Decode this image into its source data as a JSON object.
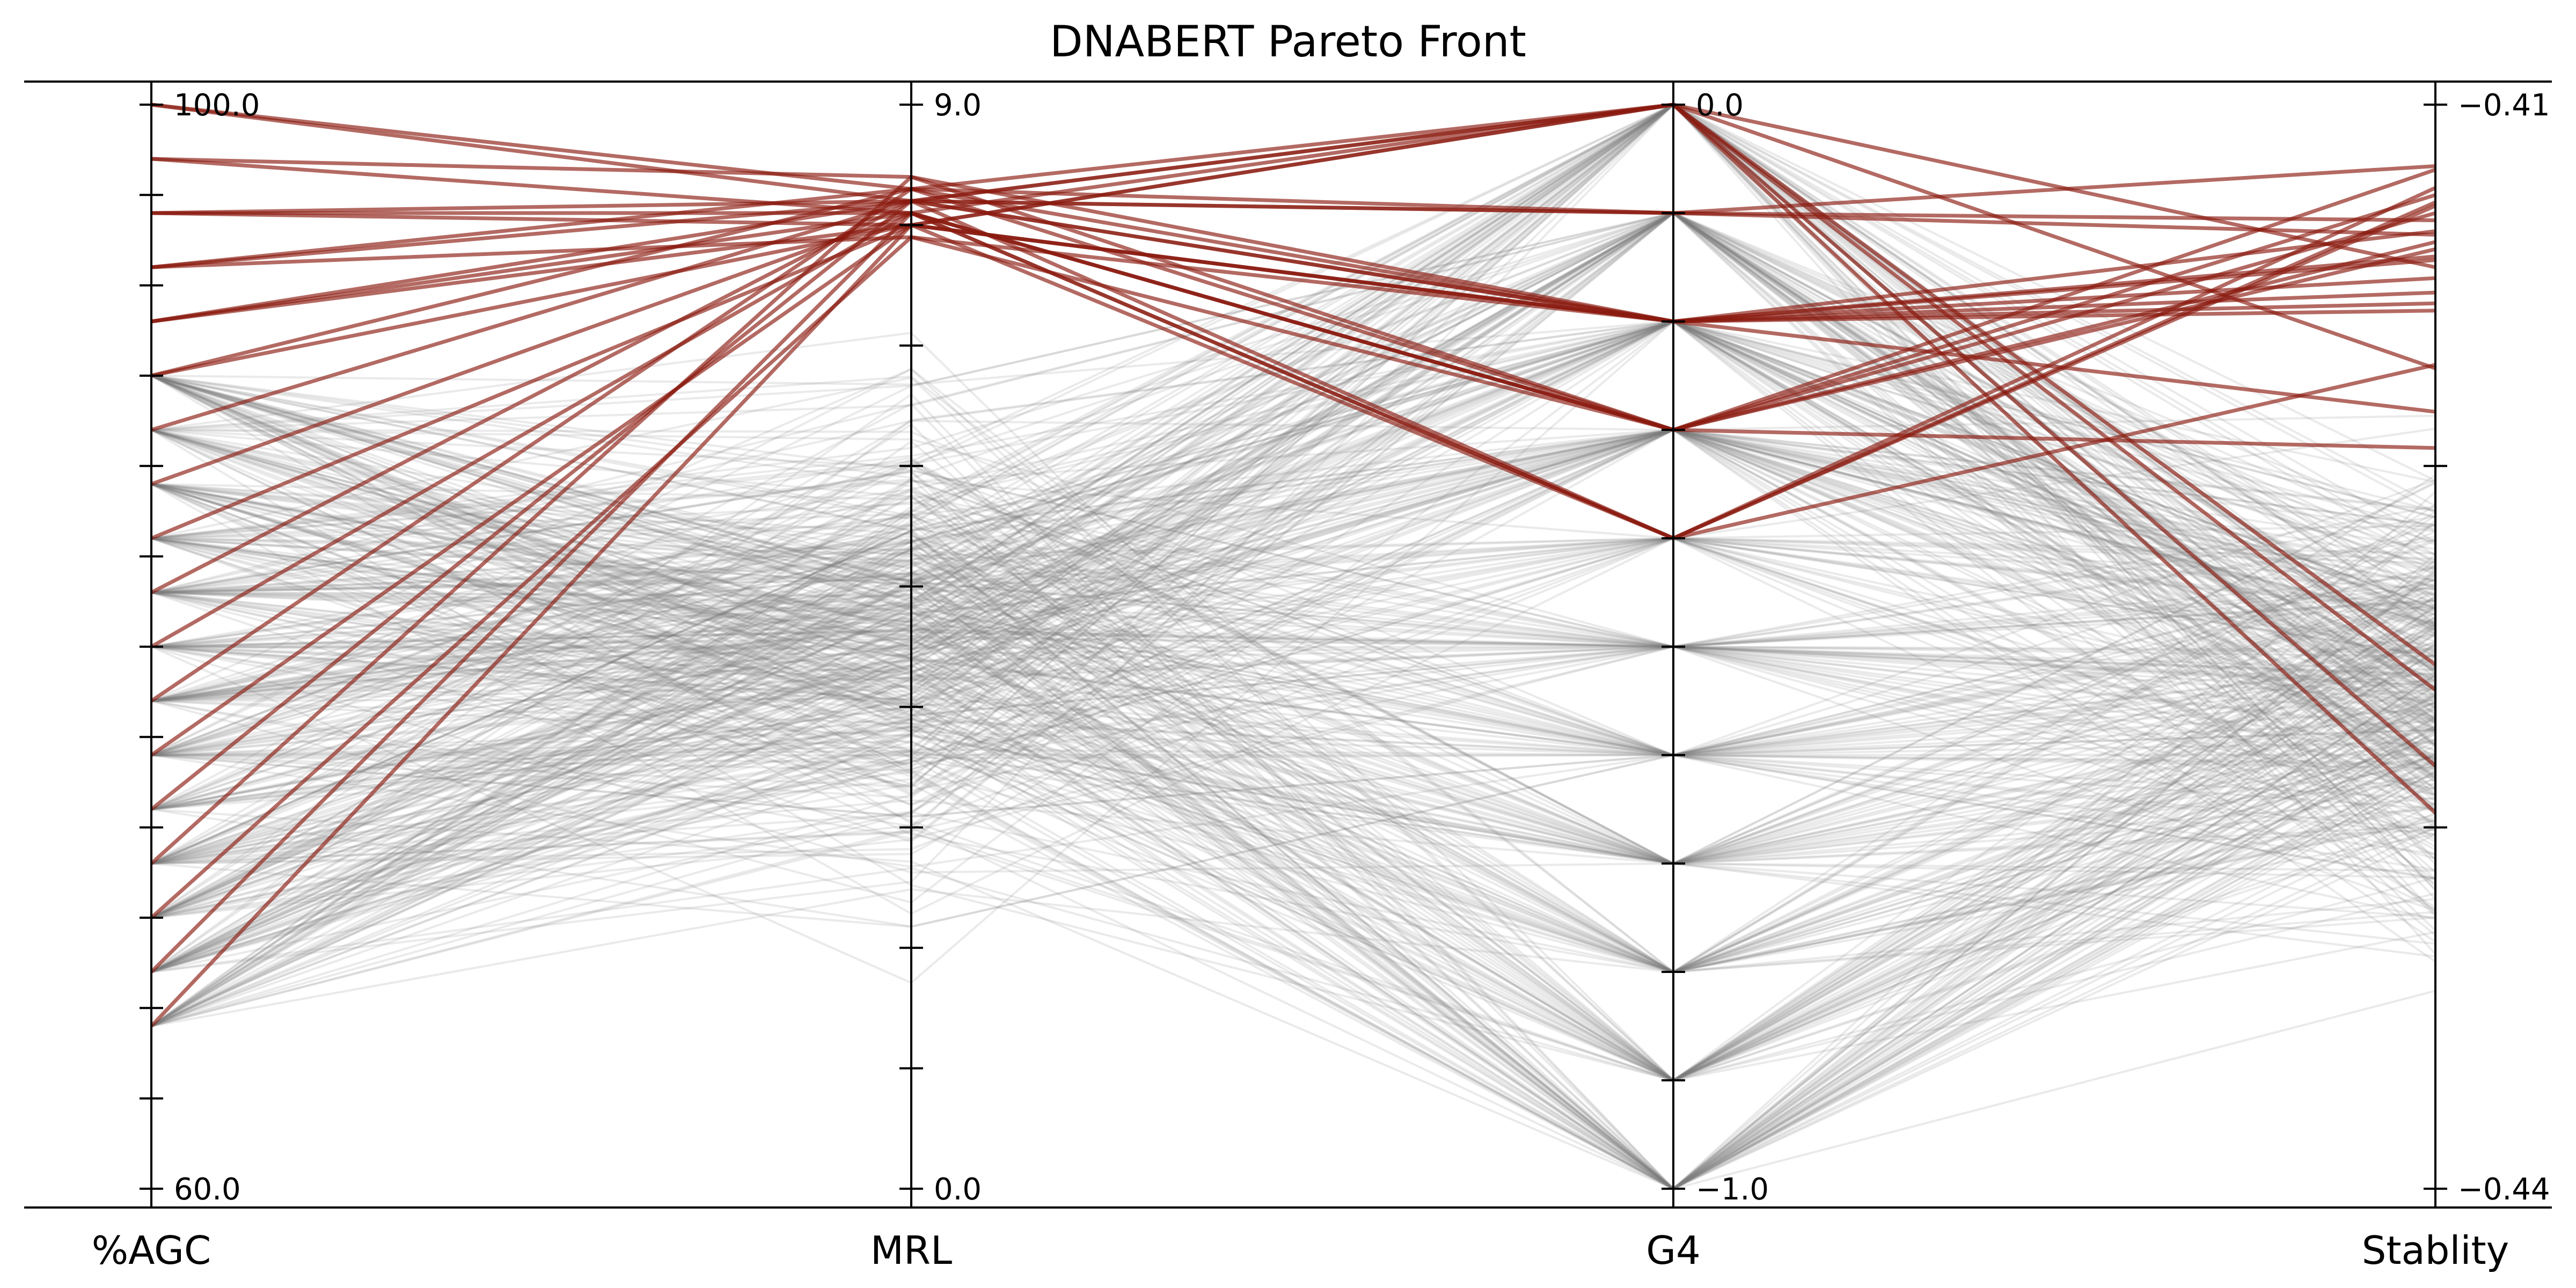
{
  "chart_data": {
    "type": "parallel_coordinates",
    "title": "DNABERT Pareto Front",
    "axes": [
      {
        "name": "%AGC",
        "min": 60.0,
        "max": 100.0,
        "min_label": "60.0",
        "max_label": "100.0",
        "levels": [
          60,
          62,
          64,
          66,
          68,
          70,
          72,
          74,
          76,
          78,
          80,
          82,
          84,
          86,
          88,
          90,
          92,
          94,
          96,
          98,
          100
        ]
      },
      {
        "name": "MRL",
        "min": 0.0,
        "max": 9.0,
        "min_label": "0.0",
        "max_label": "9.0",
        "levels": []
      },
      {
        "name": "G4",
        "min": -1.0,
        "max": 0.0,
        "min_label": "−1.0",
        "max_label": "0.0",
        "levels": [
          -1.0,
          -0.9,
          -0.8,
          -0.7,
          -0.6,
          -0.5,
          -0.4,
          -0.3,
          -0.2,
          -0.1,
          0.0
        ]
      },
      {
        "name": "Stablity",
        "min": -0.44,
        "max": -0.41,
        "min_label": "−0.44",
        "max_label": "−0.41",
        "levels": []
      }
    ],
    "pareto_lines": [
      [
        100,
        8.2,
        0.0,
        -0.4173
      ],
      [
        100,
        8.3,
        -0.1,
        -0.4117
      ],
      [
        98,
        8.1,
        0.0,
        -0.4145
      ],
      [
        98,
        8.4,
        -0.2,
        -0.4185
      ],
      [
        96,
        8.2,
        -0.1,
        -0.4136
      ],
      [
        96,
        8.0,
        -0.2,
        -0.4152
      ],
      [
        96,
        8.1,
        -0.3,
        -0.413
      ],
      [
        94,
        8.3,
        0.0,
        -0.4262
      ],
      [
        94,
        8.2,
        -0.2,
        -0.4157
      ],
      [
        94,
        7.9,
        -0.3,
        -0.4195
      ],
      [
        92,
        8.0,
        0.0,
        -0.4296
      ],
      [
        92,
        8.2,
        -0.2,
        -0.4143
      ],
      [
        92,
        8.1,
        -0.4,
        -0.4172
      ],
      [
        90,
        8.3,
        -0.3,
        -0.4138
      ],
      [
        90,
        8.0,
        -0.2,
        -0.4155
      ],
      [
        88,
        8.2,
        -0.1,
        -0.4132
      ],
      [
        86,
        8.1,
        -0.3,
        -0.4125
      ],
      [
        84,
        8.0,
        -0.2,
        -0.4148
      ],
      [
        82,
        8.2,
        -0.4,
        -0.4123
      ],
      [
        80,
        8.1,
        -0.3,
        -0.414
      ],
      [
        78,
        8.3,
        -0.2,
        -0.4135
      ],
      [
        76,
        8.0,
        -0.4,
        -0.4128
      ],
      [
        74,
        8.2,
        0.0,
        -0.4255
      ],
      [
        72,
        8.4,
        -0.3,
        -0.4118
      ],
      [
        70,
        7.9,
        -0.2,
        -0.4142
      ],
      [
        68,
        8.1,
        -0.4,
        -0.4127
      ],
      [
        66,
        8.0,
        0.0,
        -0.4283
      ]
    ],
    "population_lines_count": 450,
    "colors": {
      "pareto": "#8b1a10",
      "population": "#7f7f7f",
      "axis": "#000000"
    }
  }
}
